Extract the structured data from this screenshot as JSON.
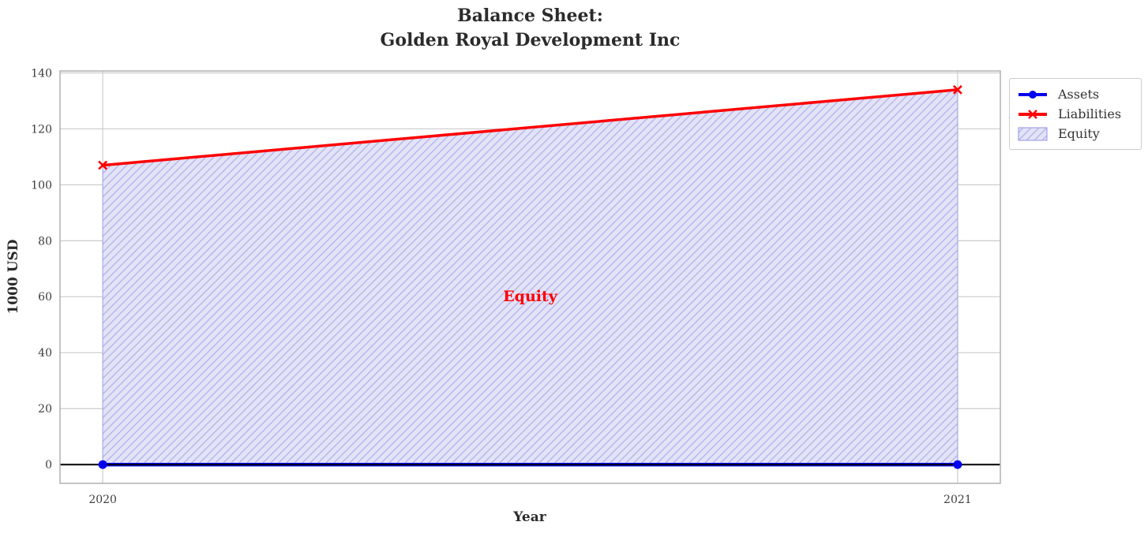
{
  "chart_data": {
    "type": "line",
    "title": "Balance Sheet:\nGolden Royal Development Inc",
    "xlabel": "Year",
    "ylabel": "1000 USD",
    "x": [
      2020,
      2021
    ],
    "series": [
      {
        "name": "Assets",
        "values": [
          0,
          0
        ],
        "color": "#0000f0",
        "marker": "circle",
        "linewidth": 4.5
      },
      {
        "name": "Liabilities",
        "values": [
          107,
          134
        ],
        "color": "#ff0000",
        "marker": "x",
        "linewidth": 3.5
      }
    ],
    "fill_between": {
      "label": "Equity",
      "lower": "Assets",
      "upper": "Liabilities",
      "fill_color": "#e3e3f8",
      "hatch": "/",
      "hatch_color": "#b6b6ee",
      "edge_color": "#a2a2e6"
    },
    "axhline": {
      "y": 0,
      "color": "#000000",
      "linewidth": 2
    },
    "annotation": {
      "text": "Equity",
      "x": 2020.5,
      "y": 60,
      "color": "#ff0000"
    },
    "xticks": [
      2020,
      2021
    ],
    "yticks": [
      0,
      20,
      40,
      60,
      80,
      100,
      120,
      140
    ],
    "xlim": [
      2019.95,
      2021.05
    ],
    "ylim": [
      -6.7,
      140.7
    ],
    "grid": true,
    "grid_color": "#cccccc",
    "axis_border_color": "#b0b0b0",
    "tick_label_color": "#3d3d3d",
    "legend": {
      "position": "upper-right-outside",
      "entries": [
        {
          "label": "Assets"
        },
        {
          "label": "Liabilities"
        },
        {
          "label": "Equity"
        }
      ]
    }
  }
}
